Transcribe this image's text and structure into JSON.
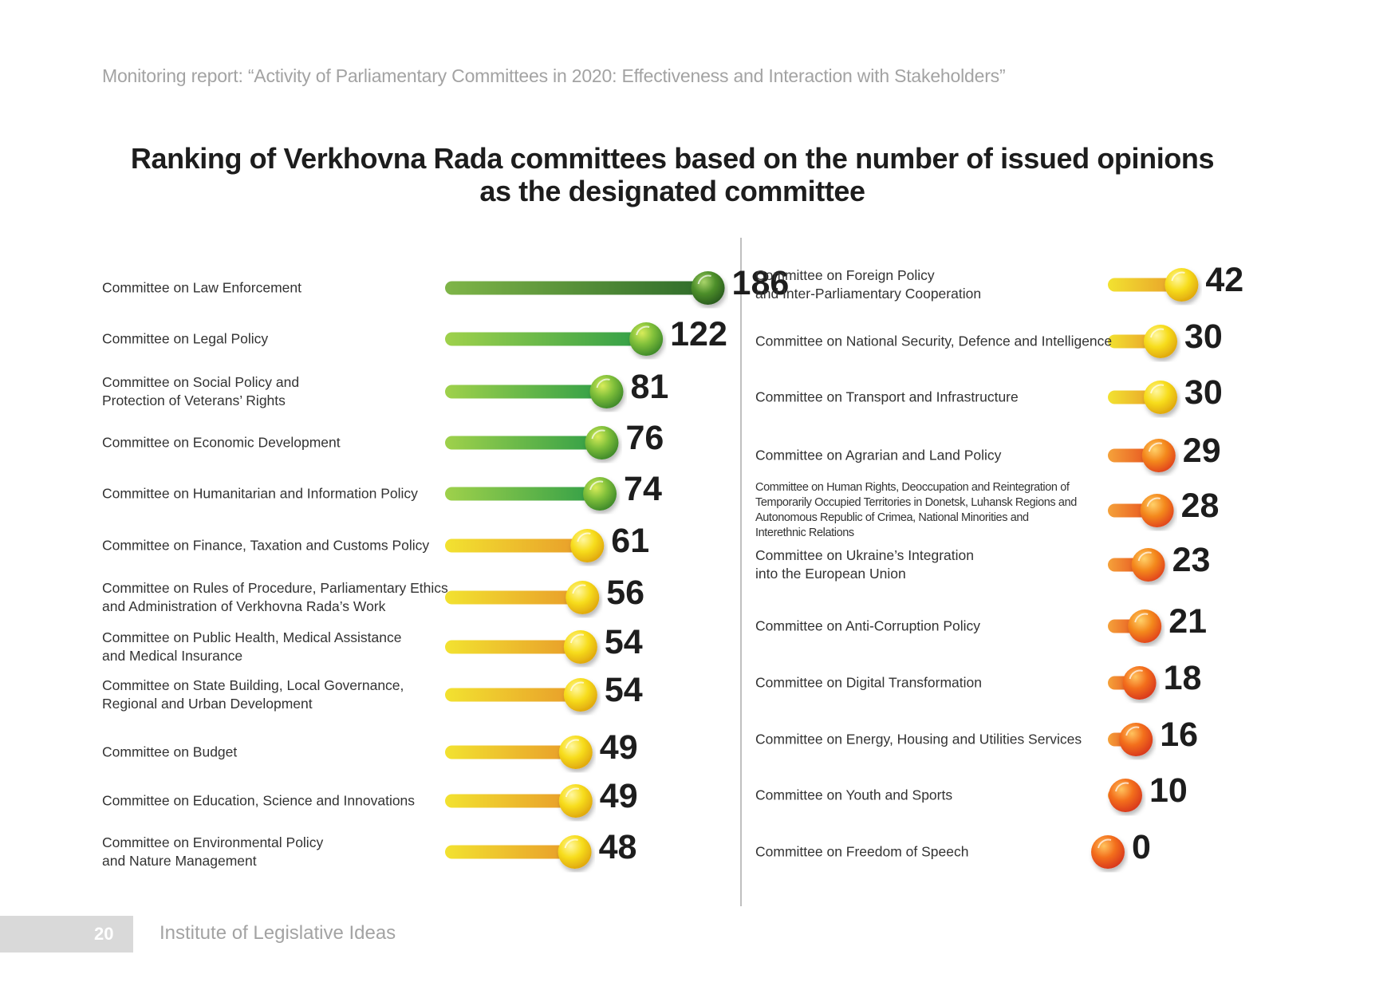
{
  "header": {
    "report_line": "Monitoring report: “Activity of Parliamentary Committees in 2020: Effectiveness and Interaction with Stakeholders”"
  },
  "footer": {
    "page_number": "20",
    "organization": "Institute of Legislative Ideas"
  },
  "colors": {
    "dark_green": "#3f7a2f",
    "green": "#6fbf3c",
    "yellow": "#f3d21a",
    "orange": "#ee6a23",
    "red_orange": "#e64a19"
  },
  "chart_data": {
    "type": "bar",
    "title": [
      "Ranking of Verkhovna Rada committees based on the number of issued opinions",
      "as the designated committee"
    ],
    "xlabel": "",
    "ylabel": "",
    "grid": false,
    "columns": [
      {
        "rows": [
          {
            "label": [
              "Committee on Law Enforcement"
            ],
            "value": 186,
            "value_label": "186",
            "color": "dark_green"
          },
          {
            "label": [
              "Committee on Legal Policy"
            ],
            "value": 122,
            "value_label": "122",
            "color": "green"
          },
          {
            "label": [
              "Committee on Social Policy and",
              "Protection of Veterans’ Rights"
            ],
            "value": 81,
            "value_label": "81",
            "color": "green"
          },
          {
            "label": [
              "Committee on Economic Development"
            ],
            "value": 76,
            "value_label": "76",
            "color": "green"
          },
          {
            "label": [
              "Committee on Humanitarian and Information Policy"
            ],
            "value": 74,
            "value_label": "74",
            "color": "green"
          },
          {
            "label": [
              "Committee on Finance, Taxation and Customs Policy"
            ],
            "value": 61,
            "value_label": "61",
            "color": "yellow"
          },
          {
            "label": [
              "Committee on Rules of Procedure, Parliamentary Ethics",
              "and Administration of Verkhovna Rada’s Work"
            ],
            "value": 56,
            "value_label": "56",
            "color": "yellow"
          },
          {
            "label": [
              "Committee on Public Health, Medical Assistance",
              "and Medical Insurance"
            ],
            "value": 54,
            "value_label": "54",
            "color": "yellow"
          },
          {
            "label": [
              "Committee on State Building, Local Governance,",
              "Regional and Urban Development"
            ],
            "value": 54,
            "value_label": "54",
            "color": "yellow"
          },
          {
            "label": [
              "Committee on Budget"
            ],
            "value": 49,
            "value_label": "49",
            "color": "yellow"
          },
          {
            "label": [
              "Committee on Education, Science and Innovations"
            ],
            "value": 49,
            "value_label": "49",
            "color": "yellow"
          },
          {
            "label": [
              "Committee on Environmental Policy",
              "and Nature Management"
            ],
            "value": 48,
            "value_label": "48",
            "color": "yellow"
          }
        ]
      },
      {
        "rows": [
          {
            "label": [
              "Committee on Foreign Policy",
              "and Inter-Parliamentary Cooperation"
            ],
            "value": 42,
            "value_label": "42",
            "color": "yellow"
          },
          {
            "label": [
              "Committee on National Security, Defence and Intelligence"
            ],
            "value": 30,
            "value_label": "30",
            "color": "yellow"
          },
          {
            "label": [
              "Committee on Transport and Infrastructure"
            ],
            "value": 30,
            "value_label": "30",
            "color": "yellow"
          },
          {
            "label": [
              "Committee on Agrarian and Land Policy"
            ],
            "value": 29,
            "value_label": "29",
            "color": "orange"
          },
          {
            "label": [
              "Committee on Human Rights, Deoccupation and Reintegration of",
              "Temporarily Occupied Territories in Donetsk, Luhansk Regions and",
              "Autonomous Republic of Crimea, National Minorities and",
              "Interethnic Relations"
            ],
            "value": 28,
            "value_label": "28",
            "color": "orange"
          },
          {
            "label": [
              "Committee on Ukraine’s Integration",
              "into the European Union"
            ],
            "value": 23,
            "value_label": "23",
            "color": "orange"
          },
          {
            "label": [
              "Committee on Anti-Corruption Policy"
            ],
            "value": 21,
            "value_label": "21",
            "color": "orange"
          },
          {
            "label": [
              "Committee on Digital Transformation"
            ],
            "value": 18,
            "value_label": "18",
            "color": "red_orange"
          },
          {
            "label": [
              "Committee on Energy, Housing and Utilities Services"
            ],
            "value": 16,
            "value_label": "16",
            "color": "red_orange"
          },
          {
            "label": [
              "Committee on Youth and Sports"
            ],
            "value": 10,
            "value_label": "10",
            "color": "red_orange"
          },
          {
            "label": [
              "Committee on Freedom of Speech"
            ],
            "value": 0,
            "value_label": "0",
            "color": "red_orange"
          }
        ]
      }
    ]
  }
}
